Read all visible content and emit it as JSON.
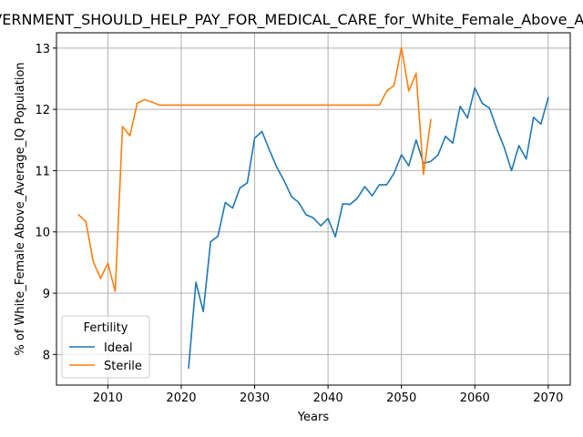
{
  "chart_data": {
    "type": "line",
    "title": "GOVERNMENT_SHOULD_HELP_PAY_FOR_MEDICAL_CARE_for_White_Female_Above_Average_IQ",
    "xlabel": "Years",
    "ylabel": "% of White_Female Above_Average_IQ Population",
    "xlim": [
      2003,
      2073
    ],
    "ylim": [
      7.5,
      13.25
    ],
    "xticks": [
      2010,
      2020,
      2030,
      2040,
      2050,
      2060,
      2070
    ],
    "yticks": [
      8,
      9,
      10,
      11,
      12,
      13
    ],
    "grid": true,
    "legend": {
      "title": "Fertility",
      "position": "lower-left"
    },
    "series": [
      {
        "name": "Ideal",
        "color": "#1f77b4",
        "x": [
          2021,
          2022,
          2023,
          2024,
          2025,
          2026,
          2027,
          2028,
          2029,
          2030,
          2031,
          2032,
          2033,
          2034,
          2035,
          2036,
          2037,
          2038,
          2039,
          2040,
          2041,
          2042,
          2043,
          2044,
          2045,
          2046,
          2047,
          2048,
          2049,
          2050,
          2051,
          2052,
          2053,
          2054,
          2055,
          2056,
          2057,
          2058,
          2059,
          2060,
          2061,
          2062,
          2063,
          2064,
          2065,
          2066,
          2067,
          2068,
          2069,
          2070
        ],
        "y": [
          7.78,
          9.18,
          8.7,
          9.84,
          9.93,
          10.48,
          10.39,
          10.72,
          10.8,
          11.53,
          11.64,
          11.34,
          11.06,
          10.84,
          10.58,
          10.48,
          10.28,
          10.23,
          10.1,
          10.22,
          9.92,
          10.46,
          10.45,
          10.55,
          10.74,
          10.59,
          10.77,
          10.77,
          10.96,
          11.26,
          11.08,
          11.5,
          11.12,
          11.15,
          11.26,
          11.56,
          11.45,
          12.05,
          11.86,
          12.35,
          12.1,
          12.02,
          11.68,
          11.38,
          11.0,
          11.41,
          11.19,
          11.87,
          11.76,
          12.19
        ]
      },
      {
        "name": "Sterile",
        "color": "#ff7f0e",
        "x": [
          2006,
          2007,
          2008,
          2009,
          2010,
          2011,
          2012,
          2013,
          2014,
          2015,
          2016,
          2017,
          2018,
          2019,
          2020,
          2021,
          2022,
          2023,
          2024,
          2025,
          2026,
          2027,
          2028,
          2029,
          2030,
          2031,
          2032,
          2033,
          2034,
          2035,
          2036,
          2037,
          2038,
          2039,
          2040,
          2041,
          2042,
          2043,
          2044,
          2045,
          2046,
          2047,
          2048,
          2049,
          2050,
          2051,
          2052,
          2053,
          2054
        ],
        "y": [
          10.28,
          10.17,
          9.52,
          9.24,
          9.49,
          9.03,
          11.72,
          11.57,
          12.1,
          12.16,
          12.12,
          12.07,
          12.07,
          12.07,
          12.07,
          12.07,
          12.07,
          12.07,
          12.07,
          12.07,
          12.07,
          12.07,
          12.07,
          12.07,
          12.07,
          12.07,
          12.07,
          12.07,
          12.07,
          12.07,
          12.07,
          12.07,
          12.07,
          12.07,
          12.07,
          12.07,
          12.07,
          12.07,
          12.07,
          12.07,
          12.07,
          12.07,
          12.3,
          12.39,
          13.01,
          12.3,
          12.59,
          10.94,
          11.83
        ]
      }
    ]
  }
}
